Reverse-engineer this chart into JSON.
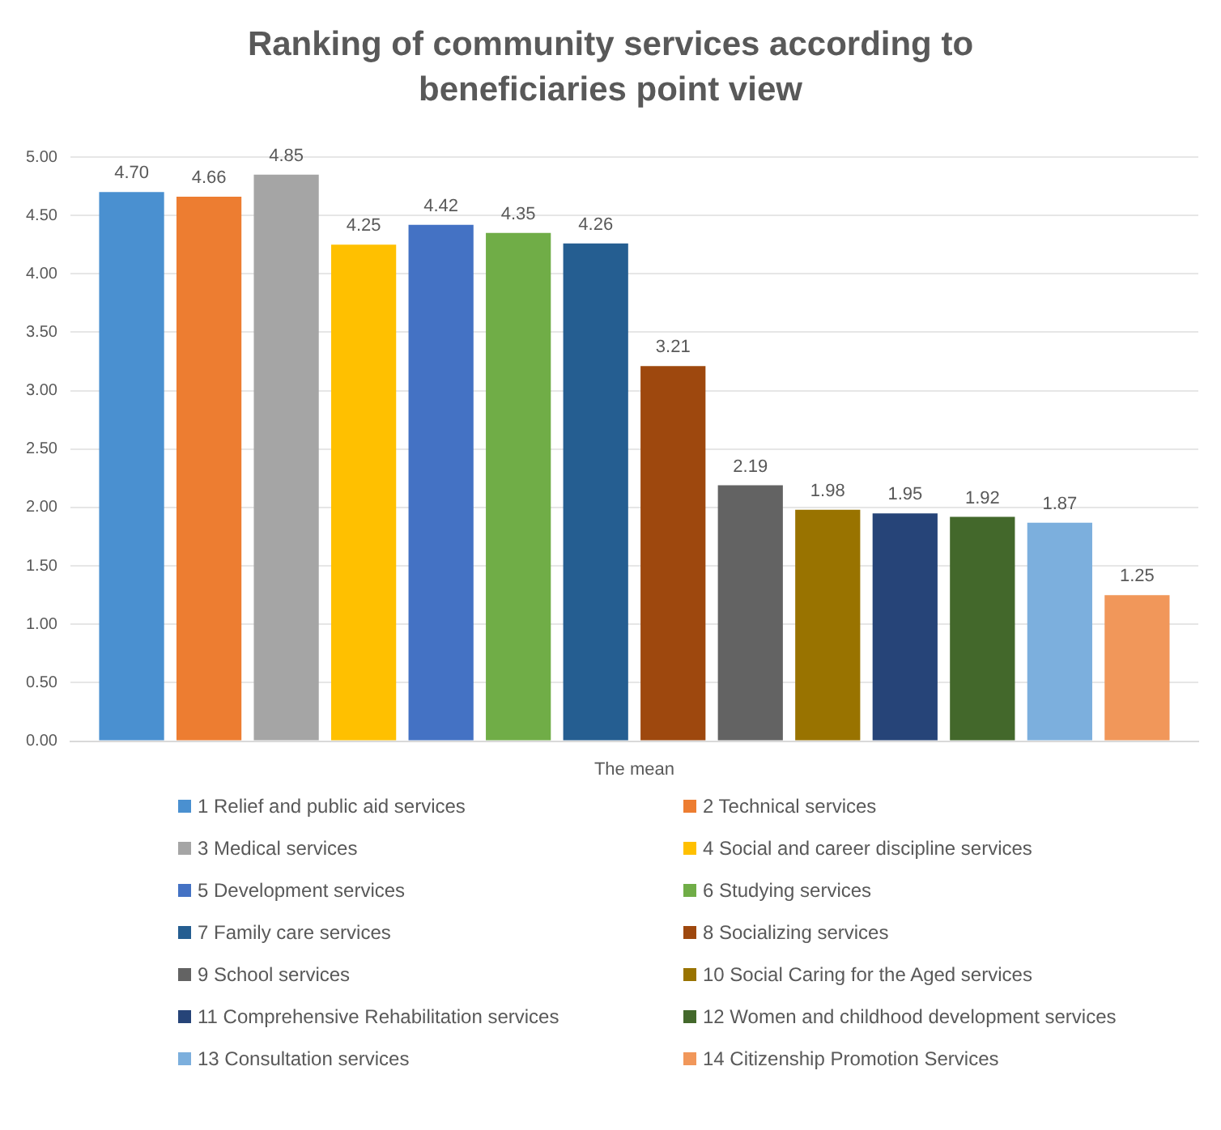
{
  "chart_data": {
    "type": "bar",
    "title": "Ranking of community services according to beneficiaries point view",
    "categories": [
      "The mean"
    ],
    "series": [
      {
        "name": "1 Relief and public aid services",
        "color": "#4a90d0",
        "values": [
          4.7
        ],
        "value_labels": [
          "4.70"
        ]
      },
      {
        "name": "2 Technical services",
        "color": "#ed7d31",
        "values": [
          4.66
        ],
        "value_labels": [
          "4.66"
        ]
      },
      {
        "name": "3 Medical services",
        "color": "#a5a5a5",
        "values": [
          4.85
        ],
        "value_labels": [
          "4.85"
        ]
      },
      {
        "name": "4 Social and career discipline services",
        "color": "#ffc000",
        "values": [
          4.25
        ],
        "value_labels": [
          "4.25"
        ]
      },
      {
        "name": "5 Development services",
        "color": "#4472c4",
        "values": [
          4.42
        ],
        "value_labels": [
          "4.42"
        ]
      },
      {
        "name": "6 Studying services",
        "color": "#70ad47",
        "values": [
          4.35
        ],
        "value_labels": [
          "4.35"
        ]
      },
      {
        "name": "7 Family care services",
        "color": "#255e91",
        "values": [
          4.26
        ],
        "value_labels": [
          "4.26"
        ]
      },
      {
        "name": "8 Socializing services",
        "color": "#9e480e",
        "values": [
          3.21
        ],
        "value_labels": [
          "3.21"
        ]
      },
      {
        "name": "9 School services",
        "color": "#636363",
        "values": [
          2.19
        ],
        "value_labels": [
          "2.19"
        ]
      },
      {
        "name": "10 Social Caring for the Aged services",
        "color": "#997300",
        "values": [
          1.98
        ],
        "value_labels": [
          "1.98"
        ]
      },
      {
        "name": "11 Comprehensive Rehabilitation services",
        "color": "#264478",
        "values": [
          1.95
        ],
        "value_labels": [
          "1.95"
        ]
      },
      {
        "name": "12 Women and childhood development services",
        "color": "#43682b",
        "values": [
          1.92
        ],
        "value_labels": [
          "1.92"
        ]
      },
      {
        "name": "13 Consultation services",
        "color": "#7cafdd",
        "values": [
          1.87
        ],
        "value_labels": [
          "1.87"
        ]
      },
      {
        "name": "14 Citizenship Promotion Services",
        "color": "#f1975a",
        "values": [
          1.25
        ],
        "value_labels": [
          "1.25"
        ]
      }
    ],
    "ylim": [
      0,
      5
    ],
    "yticks": [
      {
        "value": 0,
        "label": "0.00"
      },
      {
        "value": 0.5,
        "label": "0.50"
      },
      {
        "value": 1,
        "label": "1.00"
      },
      {
        "value": 1.5,
        "label": "1.50"
      },
      {
        "value": 2,
        "label": "2.00"
      },
      {
        "value": 2.5,
        "label": "2.50"
      },
      {
        "value": 3,
        "label": "3.00"
      },
      {
        "value": 3.5,
        "label": "3.50"
      },
      {
        "value": 4,
        "label": "4.00"
      },
      {
        "value": 4.5,
        "label": "4.50"
      },
      {
        "value": 5,
        "label": "5.00"
      }
    ],
    "grid": "y",
    "legend": "bottom"
  }
}
